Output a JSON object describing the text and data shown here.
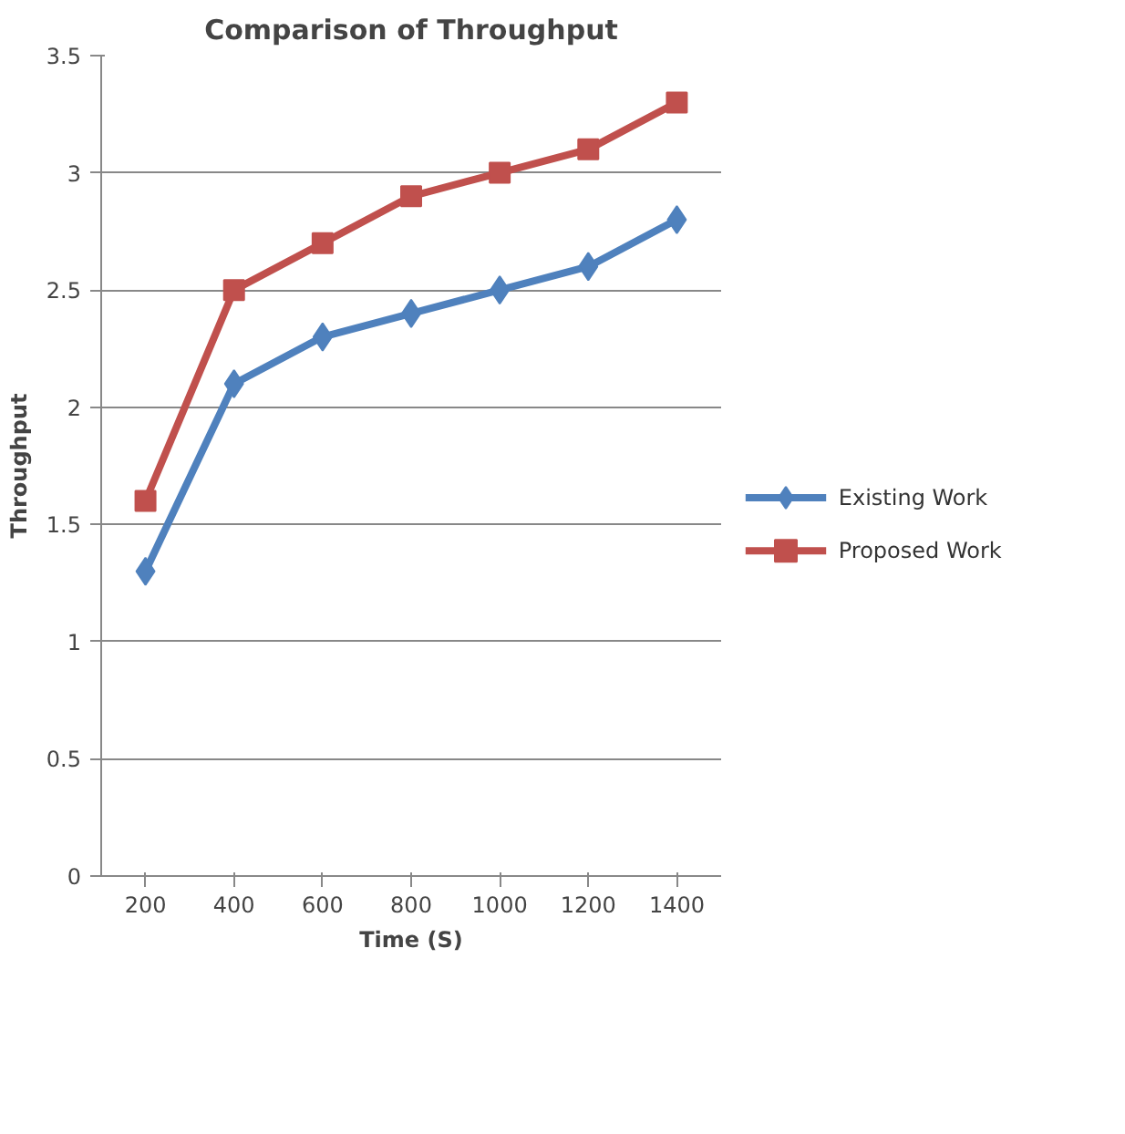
{
  "chart_data": {
    "type": "line",
    "title": "Comparison of Throughput",
    "xlabel": "Time (S)",
    "ylabel": "Throughput",
    "categories": [
      "200",
      "400",
      "600",
      "800",
      "1000",
      "1200",
      "1400"
    ],
    "series": [
      {
        "name": "Existing Work",
        "color": "#4f81bd",
        "marker": "diamond",
        "values": [
          1.3,
          2.1,
          2.3,
          2.4,
          2.5,
          2.6,
          2.8
        ]
      },
      {
        "name": "Proposed Work",
        "color": "#c0504d",
        "marker": "square",
        "values": [
          1.6,
          2.5,
          2.7,
          2.9,
          3.0,
          3.1,
          3.3
        ]
      }
    ],
    "ylim": [
      0,
      3.5
    ],
    "yticks": [
      0,
      0.5,
      1,
      1.5,
      2,
      2.5,
      3,
      3.5
    ],
    "grid": "y",
    "legend": "right",
    "line_style": "solid"
  }
}
